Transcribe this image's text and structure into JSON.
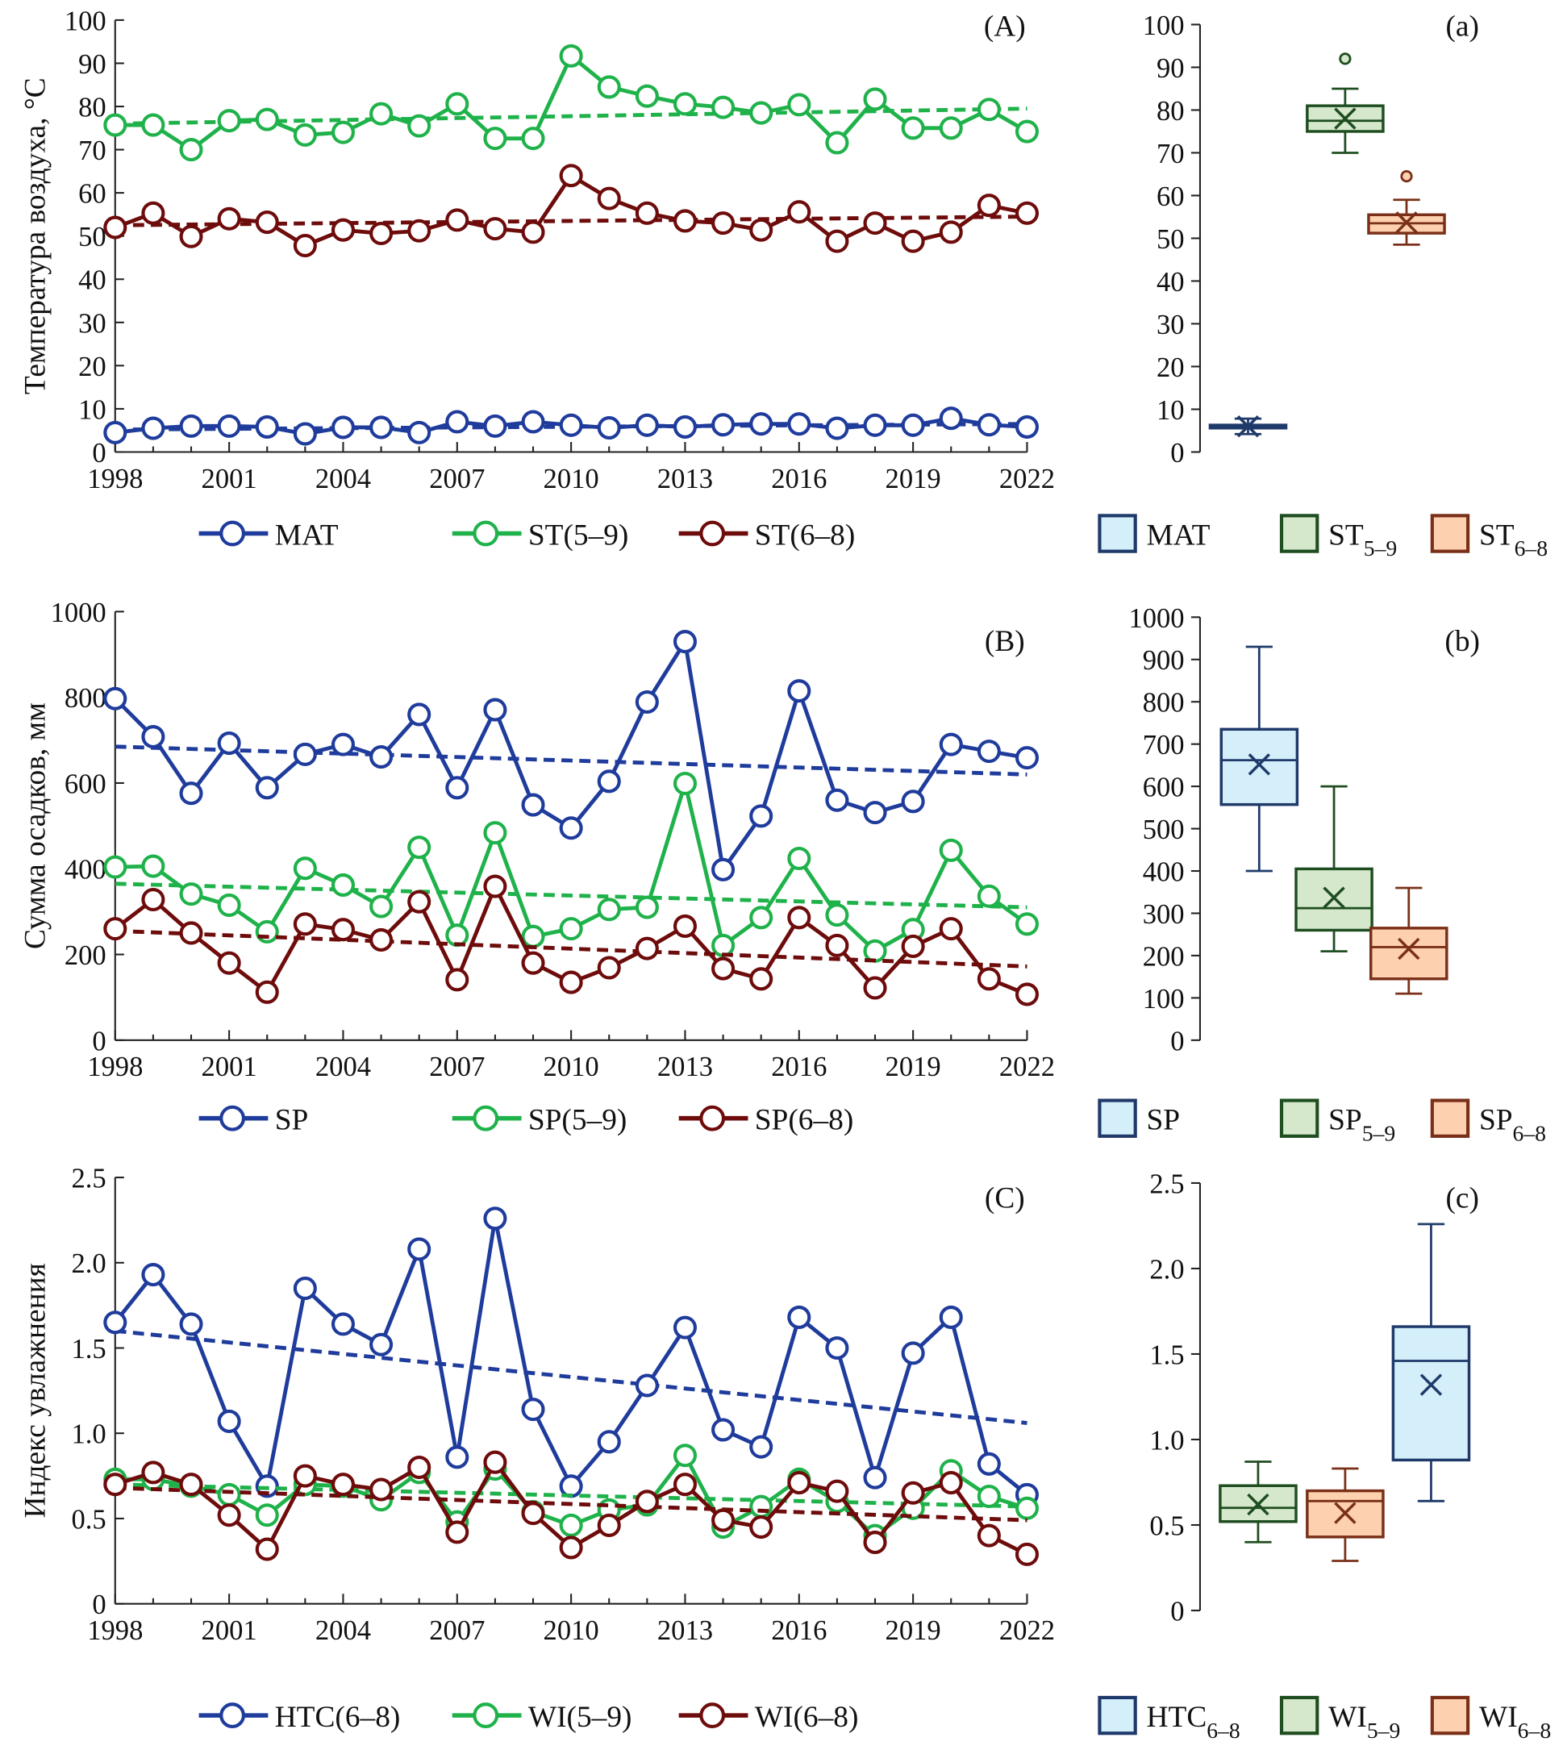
{
  "chart_data": [
    {
      "type": "line",
      "panel_label": "(A)",
      "ylabel": "Температура воздуха, °C",
      "ylim": [
        0,
        100
      ],
      "yticks": [
        "0",
        "10",
        "20",
        "30",
        "40",
        "50",
        "60",
        "70",
        "80",
        "90",
        "100"
      ],
      "xlim": [
        1998,
        2022
      ],
      "xticks": [
        "1998",
        "2001",
        "2004",
        "2007",
        "2010",
        "2013",
        "2016",
        "2019",
        "2022"
      ],
      "x": [
        1998,
        1999,
        2000,
        2001,
        2002,
        2003,
        2004,
        2005,
        2006,
        2007,
        2008,
        2009,
        2010,
        2011,
        2012,
        2013,
        2014,
        2015,
        2016,
        2017,
        2018,
        2019,
        2020,
        2021,
        2022
      ],
      "series": [
        {
          "name": "MAT",
          "color": "#1f3c9c",
          "trend": [
            5.2,
            6.5
          ],
          "values": [
            4.5,
            5.5,
            6.0,
            6.0,
            5.8,
            4.2,
            5.7,
            5.7,
            4.5,
            7.0,
            6.0,
            7.0,
            6.2,
            5.6,
            6.2,
            5.8,
            6.3,
            6.5,
            6.5,
            5.5,
            6.2,
            6.2,
            7.8,
            6.3,
            5.8
          ]
        },
        {
          "name": "ST(5–9)",
          "color": "#1fb24a",
          "trend": [
            76,
            79.5
          ],
          "values": [
            75.7,
            75.7,
            70.0,
            76.7,
            77.0,
            73.4,
            74.0,
            78.3,
            75.5,
            80.6,
            72.6,
            72.6,
            91.7,
            84.5,
            82.4,
            80.6,
            79.8,
            78.5,
            80.4,
            71.6,
            81.7,
            75.0,
            75.0,
            79.3,
            74.2
          ]
        },
        {
          "name": "ST(6–8)",
          "color": "#6e0b0b",
          "trend": [
            52.5,
            54.5
          ],
          "values": [
            52.0,
            55.3,
            49.9,
            54.0,
            53.2,
            47.8,
            51.4,
            50.6,
            51.2,
            53.7,
            51.7,
            50.9,
            64.0,
            58.7,
            55.3,
            53.5,
            53.0,
            51.4,
            55.6,
            48.8,
            53.0,
            48.8,
            50.9,
            57.1,
            55.3
          ]
        }
      ]
    },
    {
      "type": "box",
      "panel_label": "(a)",
      "ylim": [
        0,
        100
      ],
      "yticks": [
        "0",
        "10",
        "20",
        "30",
        "40",
        "50",
        "60",
        "70",
        "80",
        "90",
        "100"
      ],
      "boxes": [
        {
          "name": "MAT",
          "sub": "",
          "fill": "#d4eefa",
          "stroke": "#1f3a6a",
          "min": 4.2,
          "q1": 5.6,
          "median": 6.0,
          "q3": 6.3,
          "max": 7.8,
          "mean": 6.0,
          "outliers": []
        },
        {
          "name": "ST",
          "sub": "5–9",
          "fill": "#d5e8cc",
          "stroke": "#1e4d20",
          "min": 70,
          "q1": 75,
          "median": 77.5,
          "q3": 81,
          "max": 85,
          "mean": 78,
          "outliers": [
            92
          ]
        },
        {
          "name": "ST",
          "sub": "6–8",
          "fill": "#fdd0b0",
          "stroke": "#7a3018",
          "min": 48.5,
          "q1": 51.2,
          "median": 53.5,
          "q3": 55.5,
          "max": 59,
          "mean": 53.7,
          "outliers": [
            64.5
          ]
        }
      ],
      "legend_order": [
        0,
        1,
        2
      ]
    },
    {
      "type": "line",
      "panel_label": "(B)",
      "ylabel": "Сумма осадков, мм",
      "ylim": [
        0,
        1000
      ],
      "yticks": [
        "0",
        "200",
        "400",
        "600",
        "800",
        "1000"
      ],
      "xlim": [
        1998,
        2022
      ],
      "xticks": [
        "1998",
        "2001",
        "2004",
        "2007",
        "2010",
        "2013",
        "2016",
        "2019",
        "2022"
      ],
      "x": [
        1998,
        1999,
        2000,
        2001,
        2002,
        2003,
        2004,
        2005,
        2006,
        2007,
        2008,
        2009,
        2010,
        2011,
        2012,
        2013,
        2014,
        2015,
        2016,
        2017,
        2018,
        2019,
        2020,
        2021,
        2022
      ],
      "series": [
        {
          "name": "SP",
          "color": "#1f3c9c",
          "trend": [
            685,
            620
          ],
          "values": [
            797,
            708,
            576,
            693,
            589,
            667,
            690,
            661,
            760,
            589,
            771,
            549,
            495,
            604,
            789,
            930,
            398,
            523,
            815,
            560,
            531,
            557,
            690,
            674,
            659
          ]
        },
        {
          "name": "SP(5–9)",
          "color": "#1fb24a",
          "trend": [
            365,
            310
          ],
          "values": [
            404,
            406,
            341,
            315,
            253,
            401,
            362,
            312,
            450,
            245,
            484,
            242,
            260,
            305,
            310,
            599,
            221,
            286,
            424,
            292,
            208,
            258,
            443,
            336,
            271
          ]
        },
        {
          "name": "SP(6–8)",
          "color": "#6e0b0b",
          "trend": [
            255,
            172
          ],
          "values": [
            260,
            328,
            250,
            180,
            112,
            271,
            258,
            234,
            323,
            141,
            359,
            180,
            135,
            169,
            214,
            266,
            167,
            143,
            286,
            221,
            122,
            219,
            260,
            143,
            107
          ]
        }
      ]
    },
    {
      "type": "box",
      "panel_label": "(b)",
      "ylim": [
        0,
        1000
      ],
      "yticks": [
        "0",
        "100",
        "200",
        "300",
        "400",
        "500",
        "600",
        "700",
        "800",
        "900",
        "1000"
      ],
      "boxes": [
        {
          "name": "SP",
          "sub": "",
          "fill": "#d4eefa",
          "stroke": "#1f3a6a",
          "min": 400,
          "q1": 557,
          "median": 662,
          "q3": 735,
          "max": 930,
          "mean": 652,
          "outliers": []
        },
        {
          "name": "SP",
          "sub": "5–9",
          "fill": "#d5e8cc",
          "stroke": "#1e4d20",
          "min": 210,
          "q1": 260,
          "median": 312,
          "q3": 405,
          "max": 600,
          "mean": 337,
          "outliers": []
        },
        {
          "name": "SP",
          "sub": "6–8",
          "fill": "#fdd0b0",
          "stroke": "#7a3018",
          "min": 110,
          "q1": 145,
          "median": 220,
          "q3": 265,
          "max": 360,
          "mean": 216,
          "outliers": []
        }
      ],
      "legend_order": [
        0,
        1,
        2
      ]
    },
    {
      "type": "line",
      "panel_label": "(C)",
      "ylabel": "Индекс увлажнения",
      "ylim": [
        0,
        2.5
      ],
      "yticks": [
        "0",
        "0.5",
        "1.0",
        "1.5",
        "2.0",
        "2.5"
      ],
      "xlim": [
        1998,
        2022
      ],
      "xticks": [
        "1998",
        "2001",
        "2004",
        "2007",
        "2010",
        "2013",
        "2016",
        "2019",
        "2022"
      ],
      "x": [
        1998,
        1999,
        2000,
        2001,
        2002,
        2003,
        2004,
        2005,
        2006,
        2007,
        2008,
        2009,
        2010,
        2011,
        2012,
        2013,
        2014,
        2015,
        2016,
        2017,
        2018,
        2019,
        2020,
        2021,
        2022
      ],
      "series": [
        {
          "name": "HTC(6–8)",
          "color": "#1f3c9c",
          "trend": [
            1.6,
            1.06
          ],
          "values": [
            1.65,
            1.93,
            1.64,
            1.07,
            0.69,
            1.85,
            1.64,
            1.52,
            2.08,
            0.86,
            2.26,
            1.14,
            0.69,
            0.95,
            1.28,
            1.62,
            1.02,
            0.92,
            1.68,
            1.5,
            0.74,
            1.47,
            1.68,
            0.82,
            0.64
          ]
        },
        {
          "name": "WI(5–9)",
          "color": "#1fb24a",
          "trend": [
            0.7,
            0.57
          ],
          "values": [
            0.73,
            0.73,
            0.69,
            0.64,
            0.52,
            0.7,
            0.69,
            0.61,
            0.77,
            0.48,
            0.79,
            0.54,
            0.46,
            0.55,
            0.58,
            0.87,
            0.45,
            0.57,
            0.73,
            0.6,
            0.4,
            0.56,
            0.78,
            0.63,
            0.56
          ]
        },
        {
          "name": "WI(6–8)",
          "color": "#6e0b0b",
          "trend": [
            0.68,
            0.49
          ],
          "values": [
            0.7,
            0.77,
            0.7,
            0.52,
            0.32,
            0.75,
            0.7,
            0.67,
            0.8,
            0.42,
            0.83,
            0.53,
            0.33,
            0.46,
            0.6,
            0.7,
            0.49,
            0.45,
            0.71,
            0.66,
            0.36,
            0.65,
            0.71,
            0.4,
            0.29
          ]
        }
      ]
    },
    {
      "type": "box",
      "panel_label": "(c)",
      "ylim": [
        0,
        2.5
      ],
      "yticks": [
        "0",
        "0.5",
        "1.0",
        "1.5",
        "2.0",
        "2.5"
      ],
      "boxes": [
        {
          "name": "WI",
          "sub": "5–9",
          "fill": "#d5e8cc",
          "stroke": "#1e4d20",
          "min": 0.4,
          "q1": 0.52,
          "median": 0.6,
          "q3": 0.73,
          "max": 0.87,
          "mean": 0.62,
          "outliers": []
        },
        {
          "name": "WI",
          "sub": "6–8",
          "fill": "#fdd0b0",
          "stroke": "#7a3018",
          "min": 0.29,
          "q1": 0.43,
          "median": 0.64,
          "q3": 0.7,
          "max": 0.83,
          "mean": 0.57,
          "outliers": []
        },
        {
          "name": "HTC",
          "sub": "6–8",
          "fill": "#d4eefa",
          "stroke": "#1f3a6a",
          "min": 0.64,
          "q1": 0.88,
          "median": 1.46,
          "q3": 1.66,
          "max": 2.26,
          "mean": 1.32,
          "outliers": []
        }
      ],
      "legend_order": [
        2,
        0,
        1
      ]
    }
  ]
}
